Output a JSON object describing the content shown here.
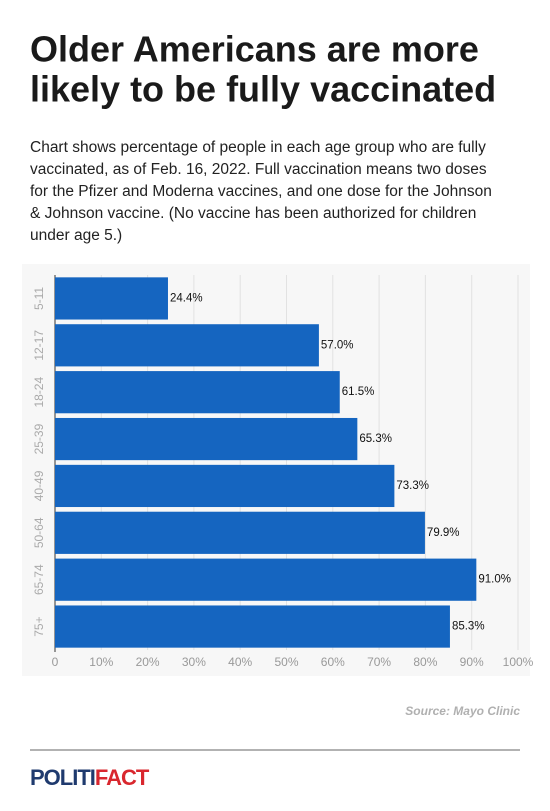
{
  "chart_data": {
    "type": "bar",
    "orientation": "horizontal",
    "title": [
      "Older Americans are more",
      "likely to be fully vaccinated"
    ],
    "subtitle": [
      "Chart shows percentage of people in each age group who are fully",
      "vaccinated, as of Feb. 16, 2022. Full vaccination means two doses",
      "for the Pfizer and Moderna vaccines, and one dose for the Johnson",
      "& Johnson vaccine. (No vaccine has been authorized for children",
      "under age 5.)"
    ],
    "categories": [
      "5-11",
      "12-17",
      "18-24",
      "25-39",
      "40-49",
      "50-64",
      "65-74",
      "75+"
    ],
    "values": [
      24.4,
      57.0,
      61.5,
      65.3,
      73.3,
      79.9,
      91.0,
      85.3
    ],
    "value_labels": [
      "24.4%",
      "57.0%",
      "61.5%",
      "65.3%",
      "73.3%",
      "79.9%",
      "91.0%",
      "85.3%"
    ],
    "color": "#1565c0",
    "xlim": [
      0,
      100
    ],
    "xticks": [
      0,
      {
        "value": 10,
        "label": "10%"
      },
      {
        "value": 20,
        "label": "20%"
      },
      {
        "value": 30,
        "label": "30%"
      },
      {
        "value": 40,
        "label": "40%"
      },
      {
        "value": 50,
        "label": "50%"
      },
      {
        "value": 60,
        "label": "60%"
      },
      {
        "value": 70,
        "label": "70%"
      },
      {
        "value": 80,
        "label": "80%"
      },
      {
        "value": 90,
        "label": "90%"
      },
      {
        "value": 100,
        "label": "100%"
      }
    ],
    "grid": true,
    "source": "Source: Mayo Clinic",
    "logo": [
      "POLITI",
      "FACT"
    ]
  }
}
